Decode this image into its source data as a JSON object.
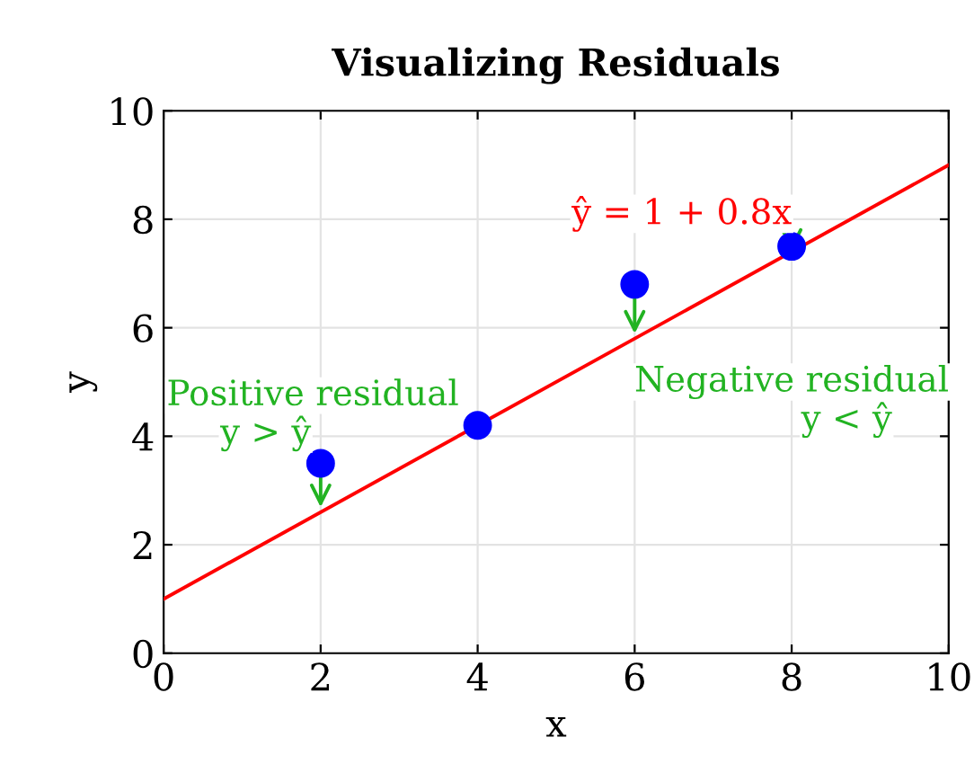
{
  "chart_data": {
    "type": "scatter",
    "title": "Visualizing Residuals",
    "xlabel": "x",
    "ylabel": "y",
    "x": [
      2,
      4,
      6,
      8
    ],
    "series": [
      {
        "color": "#0000ff",
        "values": [
          3.5,
          4.2,
          6.8,
          7.5
        ],
        "marker": "circle"
      },
      {
        "type": "line",
        "color": "#ff0000",
        "x": [
          0,
          10
        ],
        "values": [
          1,
          9
        ],
        "marker": "none",
        "line_style": "solid"
      }
    ],
    "annotations": [
      "ŷ = 1 + 0.8x",
      "Positive residual",
      "y > ŷ",
      "Negative residual",
      "y < ŷ"
    ],
    "xlim": [
      0,
      10
    ],
    "ylim": [
      0,
      10
    ],
    "xticks": [
      0,
      2,
      4,
      6,
      8,
      10
    ],
    "yticks": [
      0,
      2,
      4,
      6,
      8,
      10
    ],
    "grid": true
  }
}
